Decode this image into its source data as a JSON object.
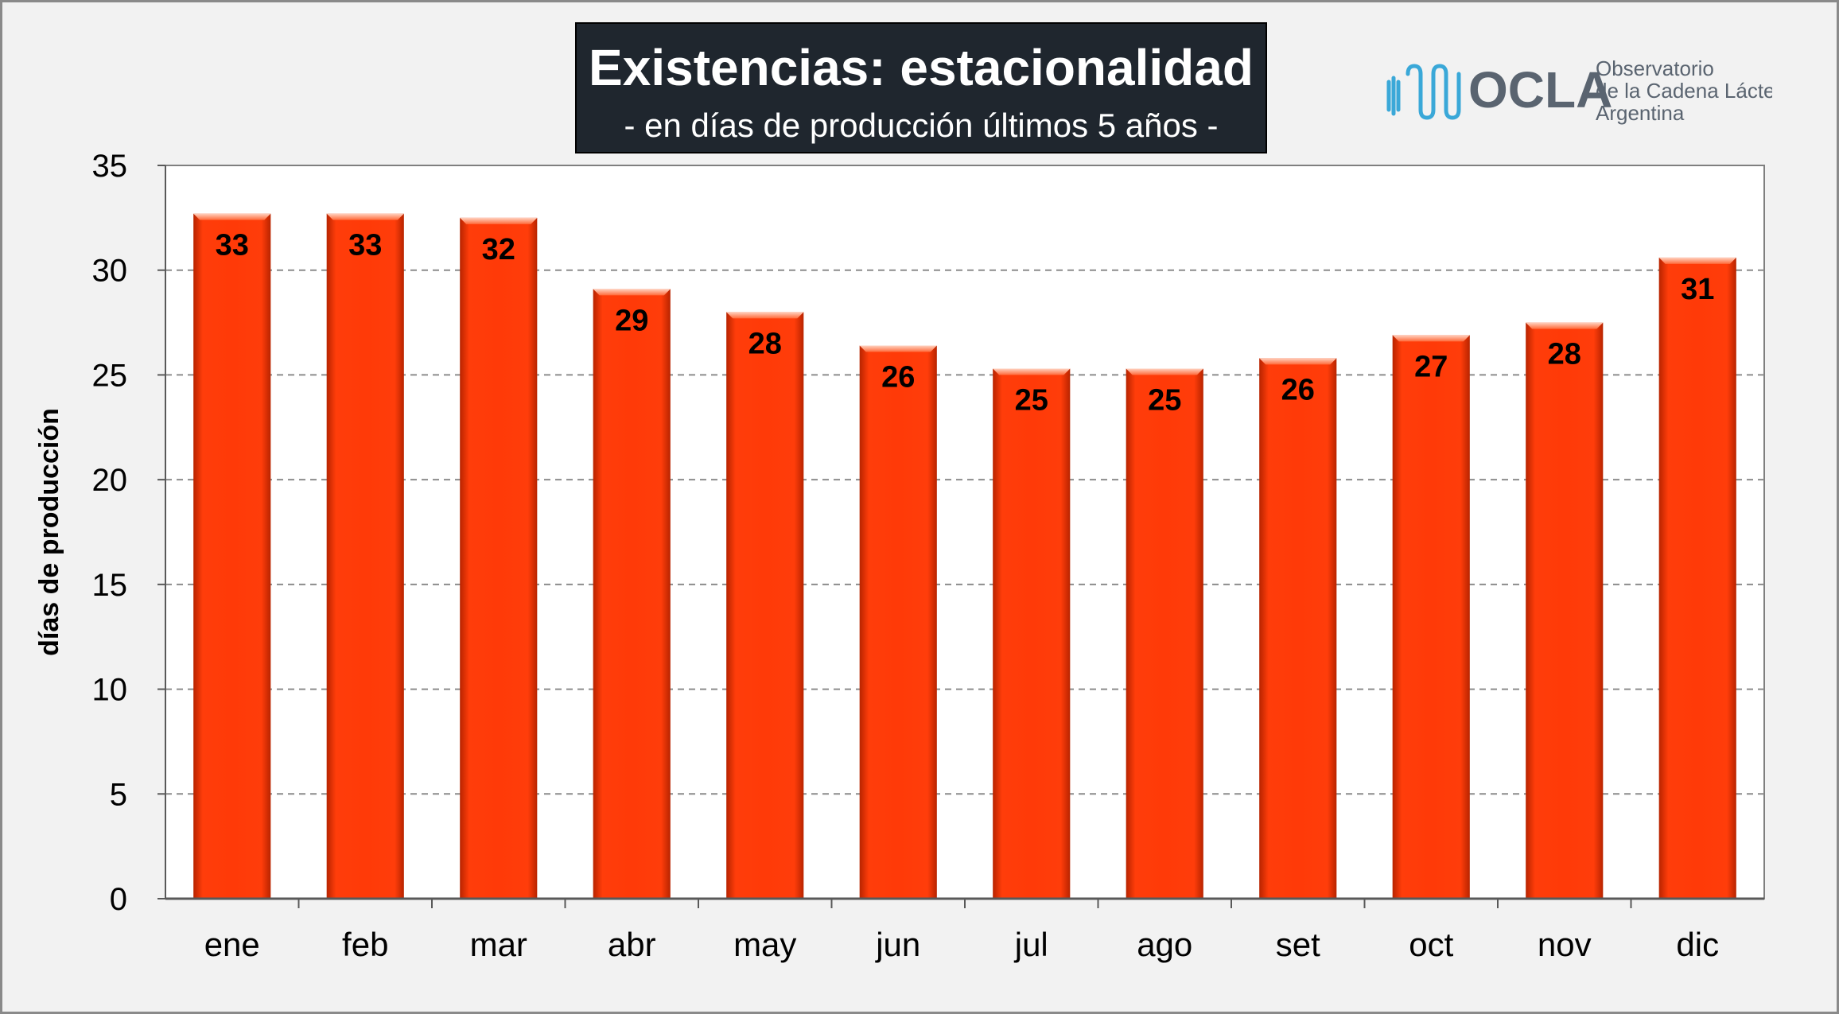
{
  "header": {
    "title": "Existencias: estacionalidad",
    "subtitle": "- en días de producción últimos 5 años -"
  },
  "logo": {
    "wordmark": "OCLA",
    "line1": "Observatorio",
    "line2": "de la Cadena Láctea",
    "line3": "Argentina",
    "icon": "waveform-icon",
    "color": "#3aa8d8",
    "wordmark_color": "#5a6470"
  },
  "chart_data": {
    "type": "bar",
    "title": "Existencias: estacionalidad",
    "subtitle": "- en días de producción últimos 5 años -",
    "xlabel": "",
    "ylabel": "días de producción",
    "categories": [
      "ene",
      "feb",
      "mar",
      "abr",
      "may",
      "jun",
      "jul",
      "ago",
      "set",
      "oct",
      "nov",
      "dic"
    ],
    "values": [
      32.7,
      32.7,
      32.5,
      29.1,
      28.0,
      26.4,
      25.3,
      25.3,
      25.8,
      26.9,
      27.5,
      30.6
    ],
    "labels": [
      "33",
      "33",
      "32",
      "29",
      "28",
      "26",
      "25",
      "25",
      "26",
      "27",
      "28",
      "31"
    ],
    "ylim": [
      0,
      35
    ],
    "yticks": [
      "0",
      "5",
      "10",
      "15",
      "20",
      "25",
      "30",
      "35"
    ],
    "grid": true,
    "legend": "none",
    "bar_color": "#ff3a0a"
  }
}
